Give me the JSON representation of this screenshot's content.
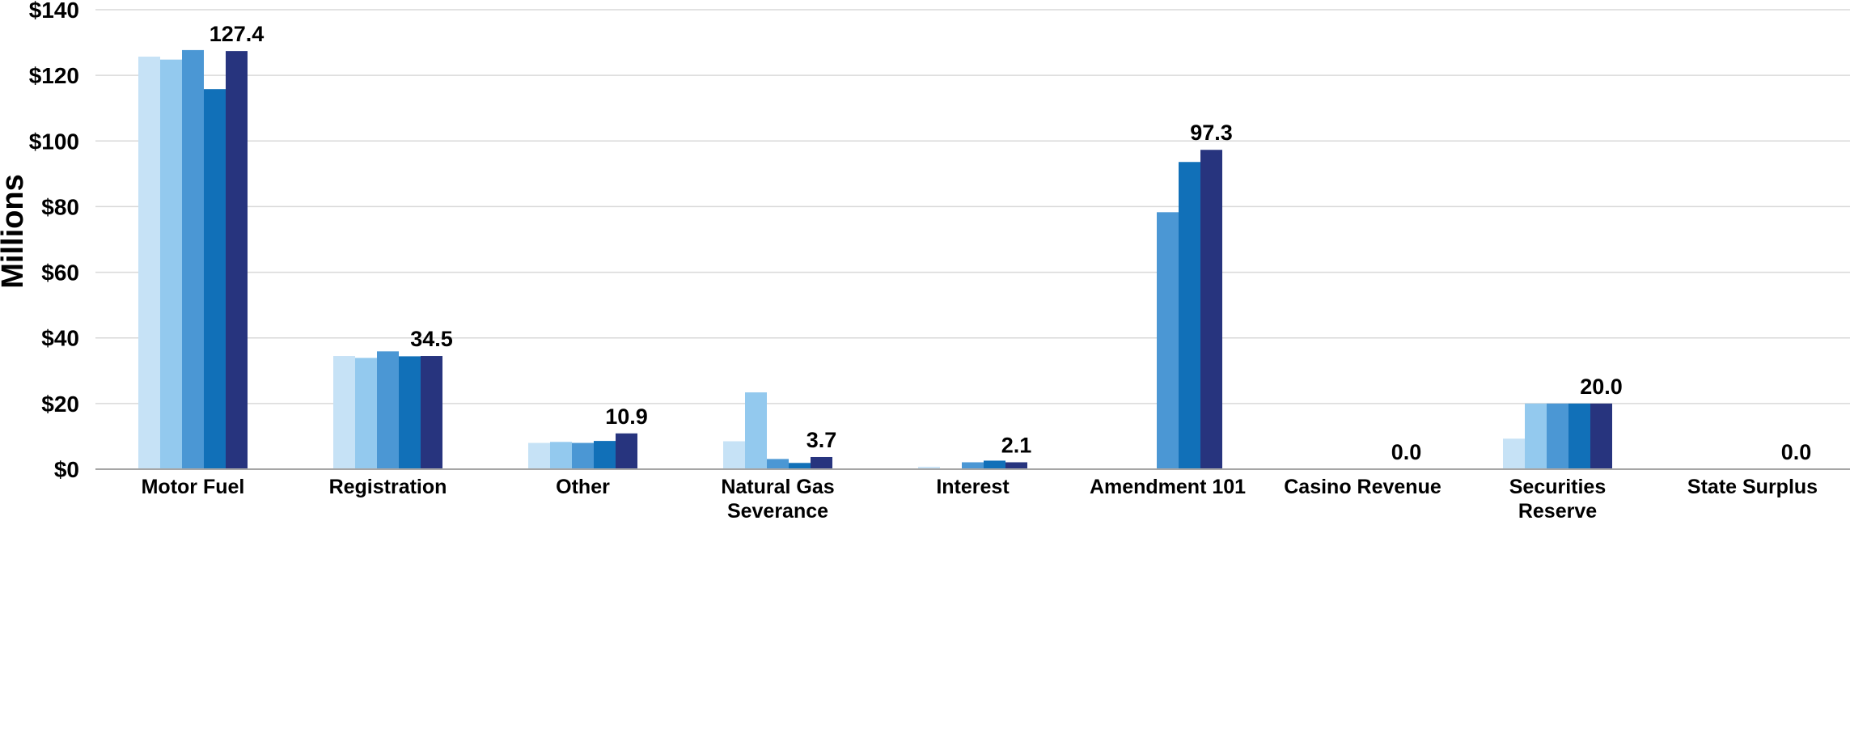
{
  "chart_data": {
    "type": "bar",
    "ylabel": "Millions",
    "xlabel": "",
    "ylim": [
      0,
      140
    ],
    "yticks": [
      0,
      20,
      40,
      60,
      80,
      100,
      120,
      140
    ],
    "ytick_labels": [
      "$0",
      "$20",
      "$40",
      "$60",
      "$80",
      "$100",
      "$120",
      "$140"
    ],
    "grid": true,
    "categories": [
      [
        "Motor Fuel"
      ],
      [
        "Registration"
      ],
      [
        "Other"
      ],
      [
        "Natural Gas",
        "Severance"
      ],
      [
        "Interest"
      ],
      [
        "Amendment 101"
      ],
      [
        "Casino Revenue"
      ],
      [
        "Securities",
        "Reserve"
      ],
      [
        "State Surplus"
      ]
    ],
    "series": [
      {
        "color": "#c6e2f6",
        "values": [
          125.7,
          34.5,
          8.0,
          8.5,
          0.7,
          0,
          0,
          9.3,
          0
        ]
      },
      {
        "color": "#93c9ee",
        "values": [
          124.8,
          33.9,
          8.3,
          23.4,
          0,
          0,
          0,
          20.0,
          0
        ]
      },
      {
        "color": "#4b97d4",
        "values": [
          127.7,
          35.9,
          8.0,
          3.1,
          2.1,
          78.3,
          0,
          20.0,
          0
        ]
      },
      {
        "color": "#1170b8",
        "values": [
          115.8,
          34.4,
          8.6,
          1.9,
          2.6,
          93.6,
          0,
          20.0,
          0
        ]
      },
      {
        "color": "#27347e",
        "values": [
          127.4,
          34.5,
          10.9,
          3.7,
          2.1,
          97.3,
          0.0,
          20.0,
          0.0
        ]
      }
    ],
    "data_labels": [
      "127.4",
      "34.5",
      "10.9",
      "3.7",
      "2.1",
      "97.3",
      "0.0",
      "20.0",
      "0.0"
    ]
  }
}
